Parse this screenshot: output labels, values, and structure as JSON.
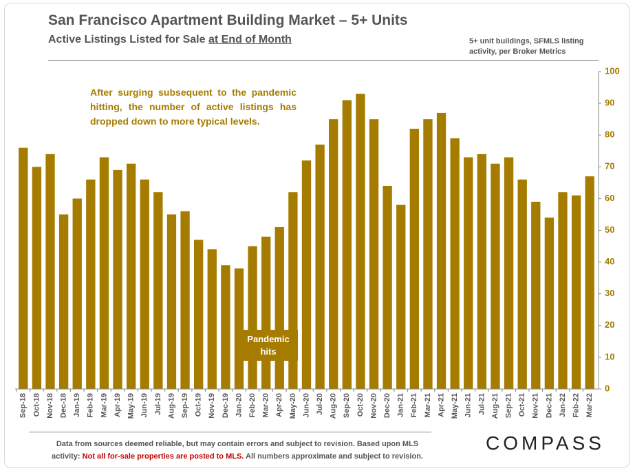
{
  "header": {
    "title": "San Francisco Apartment Building Market – 5+ Units",
    "subtitle_prefix": "Active Listings Listed for Sale ",
    "subtitle_underlined": "at End of Month",
    "note": "5+ unit buildings, SFMLS listing activity, per Broker Metrics"
  },
  "annotation": {
    "text": "After surging subsequent to the pandemic hitting, the number of active listings has dropped down to more typical levels.",
    "pandemic_label": "Pandemic hits"
  },
  "footer": {
    "line1": "Data from sources deemed reliable, but may contain errors and subject to revision. Based upon MLS",
    "line2_prefix": "activity: ",
    "line2_red": "Not all for-sale properties are posted to MLS.",
    "line2_suffix": " All numbers approximate and subject to revision.",
    "logo": "COMPASS"
  },
  "colors": {
    "bar": "#a57c00",
    "axis_label": "#a57c00",
    "text": "#555555",
    "red": "#c00000"
  },
  "chart_data": {
    "type": "bar",
    "title": "Active Listings Listed for Sale at End of Month",
    "ylim": [
      0,
      100
    ],
    "yticks": [
      0,
      10,
      20,
      30,
      40,
      50,
      60,
      70,
      80,
      90,
      100
    ],
    "y_axis_side": "right",
    "categories": [
      "Sep-18",
      "Oct-18",
      "Nov-18",
      "Dec-18",
      "Jan-19",
      "Feb-19",
      "Mar-19",
      "Apr-19",
      "May-19",
      "Jun-19",
      "Jul-19",
      "Aug-19",
      "Sep-19",
      "Oct-19",
      "Nov-19",
      "Dec-19",
      "Jan-20",
      "Feb-20",
      "Mar-20",
      "Apr-20",
      "May-20",
      "Jun-20",
      "Jul-20",
      "Aug-20",
      "Sep-20",
      "Oct-20",
      "Nov-20",
      "Dec-20",
      "Jan-21",
      "Feb-21",
      "Mar-21",
      "Apr-21",
      "May-21",
      "Jun-21",
      "Jul-21",
      "Aug-21",
      "Sep-21",
      "Oct-21",
      "Nov-21",
      "Dec-21",
      "Jan-22",
      "Feb-22",
      "Mar-22"
    ],
    "values": [
      76,
      70,
      74,
      55,
      60,
      66,
      73,
      69,
      71,
      66,
      62,
      55,
      56,
      47,
      44,
      39,
      38,
      45,
      48,
      51,
      62,
      72,
      77,
      85,
      91,
      93,
      85,
      64,
      58,
      82,
      85,
      87,
      79,
      73,
      74,
      71,
      73,
      66,
      59,
      54,
      62,
      61,
      67
    ]
  }
}
